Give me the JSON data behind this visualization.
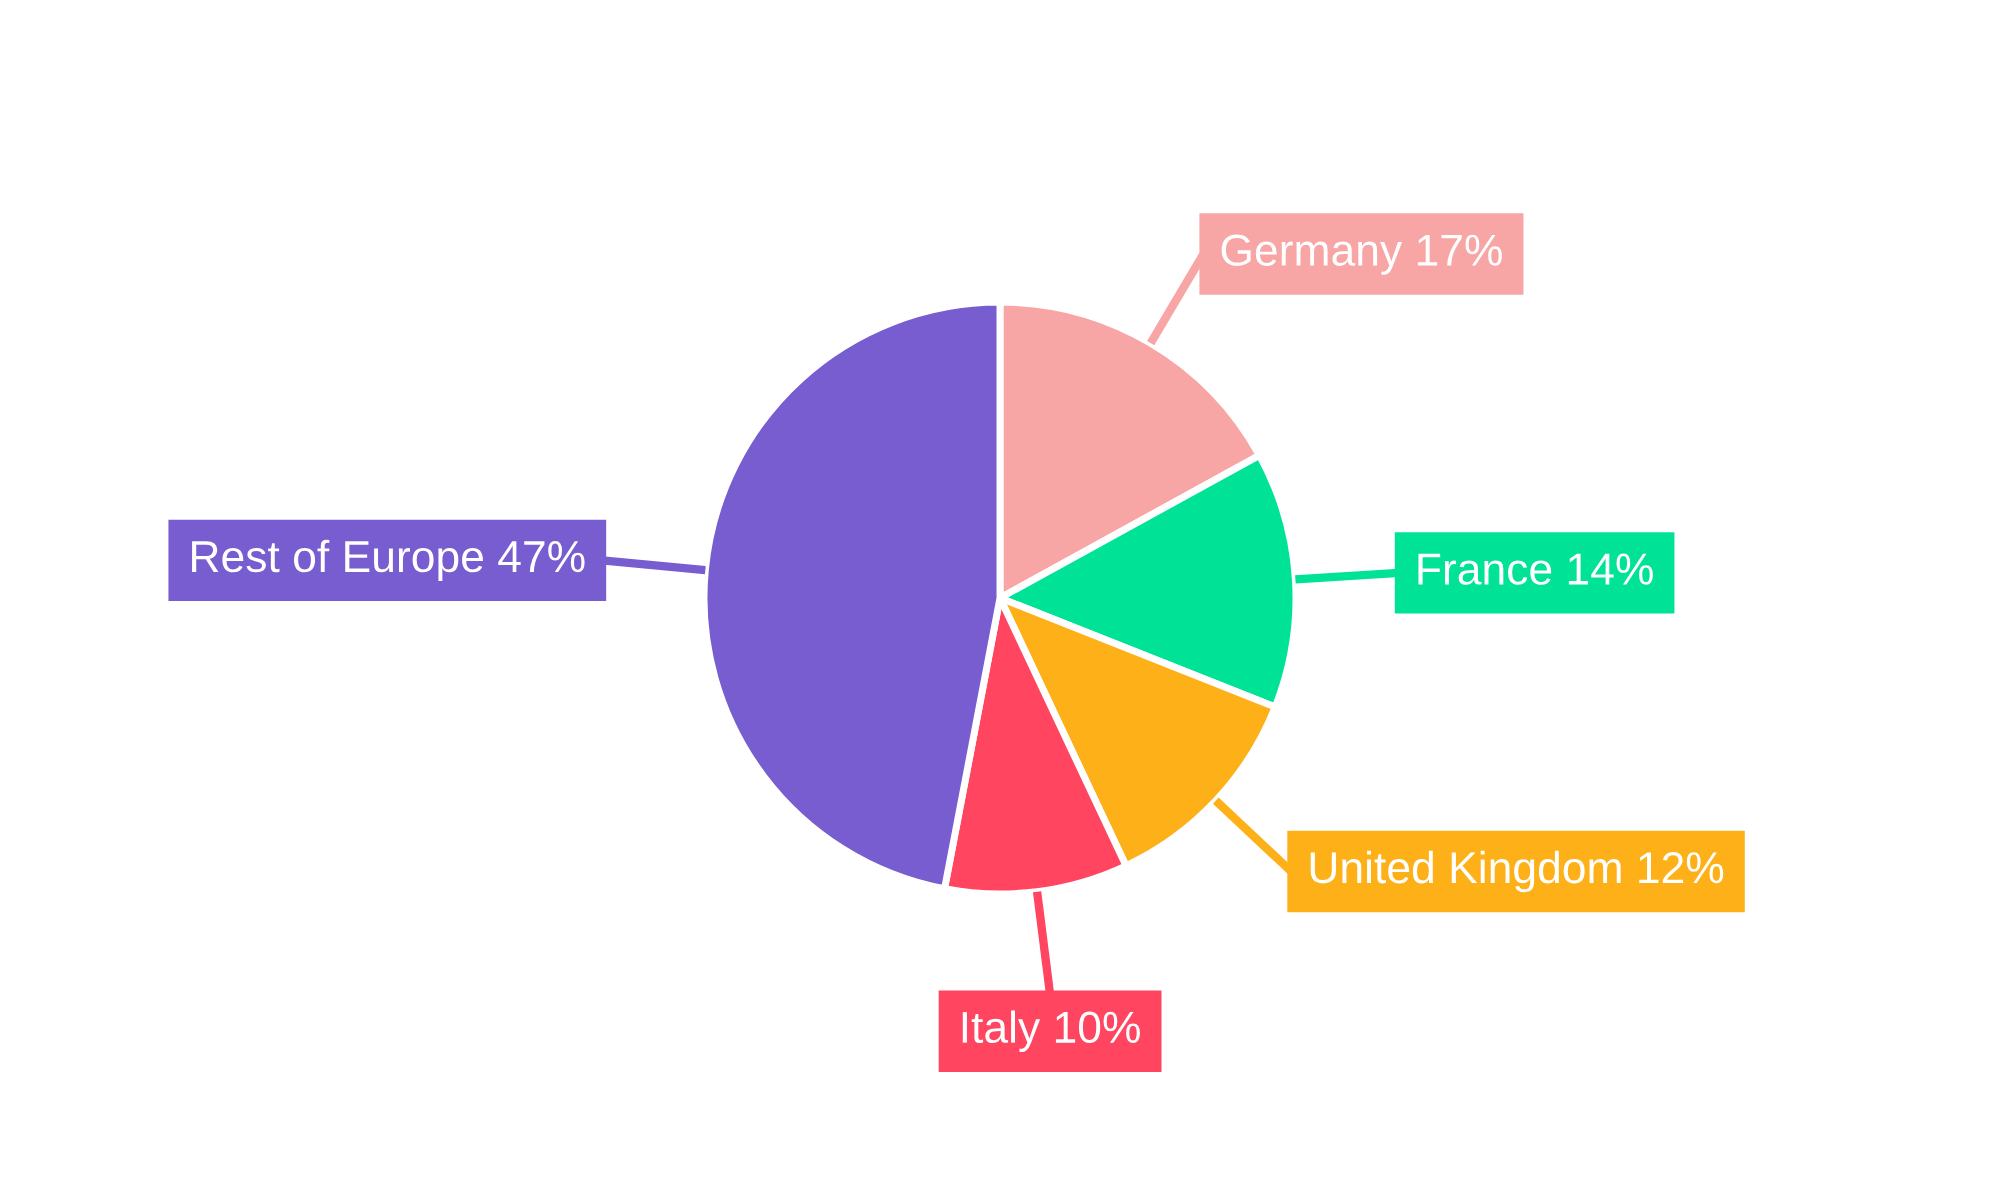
{
  "chart_data": {
    "type": "pie",
    "categories": [
      "Germany",
      "France",
      "United Kingdom",
      "Italy",
      "Rest of Europe"
    ],
    "values": [
      17,
      14,
      12,
      10,
      47
    ],
    "value_labels": [
      "17%",
      "14%",
      "12%",
      "10%",
      "47%"
    ],
    "colors": [
      "#f8a5a5",
      "#00e396",
      "#feb019",
      "#ff4560",
      "#775dd0"
    ],
    "legend": false
  }
}
